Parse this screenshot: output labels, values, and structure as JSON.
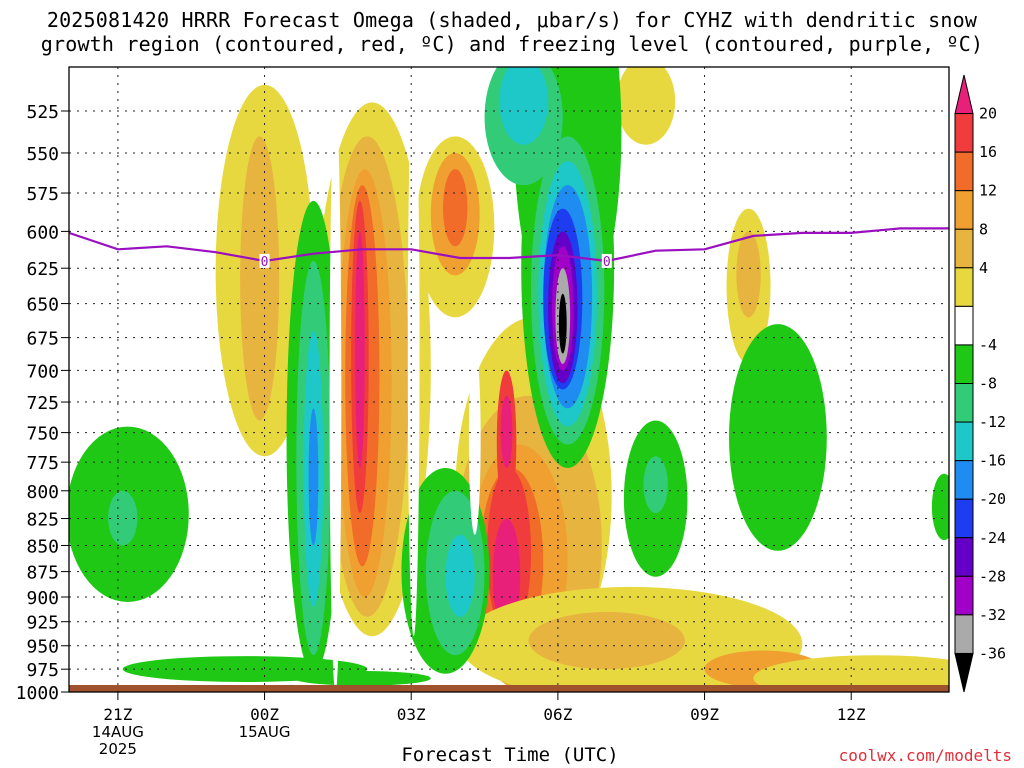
{
  "title_line1": "2025081420 HRRR Forecast Omega (shaded, μbar/s) for CYHZ with dendritic snow",
  "title_line2": "growth region (contoured, red, ºC) and freezing level (contoured, purple, ºC)",
  "credit": "coolwx.com/modelts",
  "chart_data": {
    "type": "heatmap",
    "title": "2025081420 HRRR Forecast Omega (shaded, μbar/s) for CYHZ with dendritic snow growth region (contoured, red, ºC) and freezing level (contoured, purple, ºC)",
    "xlabel": "Forecast Time (UTC)",
    "ylabel": "",
    "x_ticks": [
      {
        "hour": -3,
        "label": "21Z",
        "sub1": "14AUG",
        "sub2": "2025"
      },
      {
        "hour": 0,
        "label": "00Z",
        "sub1": "15AUG",
        "sub2": ""
      },
      {
        "hour": 3,
        "label": "03Z",
        "sub1": "",
        "sub2": ""
      },
      {
        "hour": 6,
        "label": "06Z",
        "sub1": "",
        "sub2": ""
      },
      {
        "hour": 9,
        "label": "09Z",
        "sub1": "",
        "sub2": ""
      },
      {
        "hour": 12,
        "label": "12Z",
        "sub1": "",
        "sub2": ""
      }
    ],
    "xlim": [
      -4,
      14
    ],
    "y_ticks": [
      525,
      550,
      575,
      600,
      625,
      650,
      675,
      700,
      725,
      750,
      775,
      800,
      825,
      850,
      875,
      900,
      925,
      950,
      975,
      1000
    ],
    "ylim": [
      500,
      1000
    ],
    "y_scale": "log-pressure",
    "grid": true,
    "colorbar": {
      "labels": [
        "20",
        "16",
        "12",
        "8",
        "4",
        "-4",
        "-8",
        "-12",
        "-16",
        "-20",
        "-24",
        "-28",
        "-32",
        "-36"
      ],
      "colors": [
        "#e8207a",
        "#f03c3c",
        "#f06c28",
        "#f0a030",
        "#e8b440",
        "#e8d840",
        "#ffffff",
        "#1ec814",
        "#32cc78",
        "#1ec8c8",
        "#1e8cf0",
        "#1e3cf0",
        "#6400c8",
        "#a000c8",
        "#aaaaaa",
        "#000000"
      ]
    },
    "freezing_level": {
      "label": "0",
      "color": "#9a10c0",
      "points": [
        [
          -4,
          601
        ],
        [
          -3,
          612
        ],
        [
          -2,
          610
        ],
        [
          -1,
          614
        ],
        [
          0,
          620
        ],
        [
          1,
          615
        ],
        [
          2,
          612
        ],
        [
          3,
          612
        ],
        [
          4,
          618
        ],
        [
          5,
          618
        ],
        [
          6,
          616
        ],
        [
          7,
          620
        ],
        [
          8,
          613
        ],
        [
          9,
          612
        ],
        [
          10,
          603
        ],
        [
          11,
          601
        ],
        [
          12,
          601
        ],
        [
          13,
          598
        ],
        [
          14,
          598
        ]
      ]
    },
    "omega_features": [
      {
        "name": "updraft core 06Z",
        "hour_range": [
          5.6,
          6.8
        ],
        "pressure_range": [
          600,
          770
        ],
        "min_value": -36
      },
      {
        "name": "updraft 01Z",
        "hour_range": [
          0.6,
          1.4
        ],
        "pressure_range": [
          580,
          970
        ],
        "min_value": -16
      },
      {
        "name": "downdraft 02Z",
        "hour_range": [
          1.6,
          2.8
        ],
        "pressure_range": [
          540,
          960
        ],
        "max_value": 20
      },
      {
        "name": "downdraft 05Z lower",
        "hour_range": [
          4.4,
          6.8
        ],
        "pressure_range": [
          690,
          990
        ],
        "max_value": 20
      },
      {
        "name": "updraft 21Z",
        "hour_range": [
          -3.6,
          -1.6
        ],
        "pressure_range": [
          750,
          900
        ],
        "min_value": -12
      },
      {
        "name": "updraft 03-04Z lower",
        "hour_range": [
          3.2,
          4.5
        ],
        "pressure_range": [
          770,
          980
        ],
        "min_value": -16
      }
    ]
  }
}
